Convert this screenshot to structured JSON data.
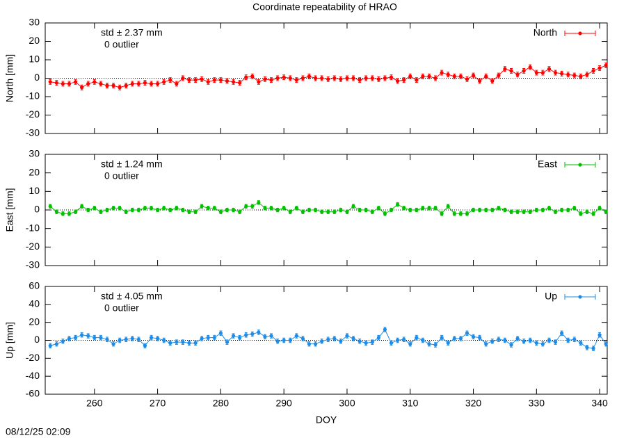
{
  "title": "Coordinate repeatability of HRAO",
  "xlabel": "DOY",
  "timestamp": "08/12/25 02:09",
  "chart_data": [
    {
      "type": "line",
      "ylabel": "North [mm]",
      "std_text": "std ± 2.37 mm",
      "outlier_text": "0 outlier",
      "xlim": [
        252.2,
        341.2
      ],
      "xticks": [
        260,
        270,
        280,
        290,
        300,
        310,
        320,
        330,
        340
      ],
      "ylim": [
        -30,
        30
      ],
      "yticks": [
        -30,
        -20,
        -10,
        0,
        10,
        20,
        30
      ],
      "x": [
        253,
        254,
        255,
        256,
        257,
        258,
        259,
        260,
        261,
        262,
        263,
        264,
        265,
        266,
        267,
        268,
        269,
        270,
        271,
        272,
        273,
        274,
        275,
        276,
        277,
        278,
        279,
        280,
        281,
        282,
        283,
        284,
        285,
        286,
        287,
        288,
        289,
        290,
        291,
        292,
        293,
        294,
        295,
        296,
        297,
        298,
        299,
        300,
        301,
        302,
        303,
        304,
        305,
        306,
        307,
        308,
        309,
        310,
        311,
        312,
        313,
        314,
        315,
        316,
        317,
        318,
        319,
        320,
        321,
        322,
        323,
        324,
        325,
        326,
        327,
        328,
        329,
        330,
        331,
        332,
        333,
        334,
        335,
        336,
        337,
        338,
        339,
        340,
        341
      ],
      "series": [
        {
          "name": "North",
          "color": "#ff0000",
          "error": 1.3,
          "values": [
            -2,
            -2.5,
            -3,
            -3,
            -2,
            -5,
            -3,
            -2,
            -3,
            -4,
            -4,
            -5,
            -4,
            -3,
            -3,
            -2.5,
            -3,
            -3,
            -2,
            -1,
            -3,
            0,
            -1,
            -1,
            -0.5,
            -2,
            -1,
            -1,
            -1.5,
            -2,
            -2.5,
            0.5,
            1,
            -2,
            -0.5,
            -1,
            0,
            0.5,
            0,
            -1,
            0,
            1,
            0,
            0,
            -0.5,
            0,
            -0.5,
            0,
            0,
            -1,
            0,
            0,
            -0.5,
            0,
            0.5,
            -1.5,
            -1,
            1,
            -1,
            1,
            1,
            0,
            3,
            2,
            1,
            1,
            -0.5,
            1.5,
            -1.5,
            1,
            -1.5,
            1.5,
            5,
            4,
            2,
            4,
            6,
            3,
            3,
            5,
            3,
            2.5,
            2,
            1.5,
            1,
            2,
            4,
            5.5,
            7
          ]
        }
      ]
    },
    {
      "type": "line",
      "ylabel": "East [mm]",
      "std_text": "std ± 1.24 mm",
      "outlier_text": "0 outlier",
      "xlim": [
        252.2,
        341.2
      ],
      "xticks": [
        260,
        270,
        280,
        290,
        300,
        310,
        320,
        330,
        340
      ],
      "ylim": [
        -30,
        30
      ],
      "yticks": [
        -30,
        -20,
        -10,
        0,
        10,
        20,
        30
      ],
      "x": [
        253,
        254,
        255,
        256,
        257,
        258,
        259,
        260,
        261,
        262,
        263,
        264,
        265,
        266,
        267,
        268,
        269,
        270,
        271,
        272,
        273,
        274,
        275,
        276,
        277,
        278,
        279,
        280,
        281,
        282,
        283,
        284,
        285,
        286,
        287,
        288,
        289,
        290,
        291,
        292,
        293,
        294,
        295,
        296,
        297,
        298,
        299,
        300,
        301,
        302,
        303,
        304,
        305,
        306,
        307,
        308,
        309,
        310,
        311,
        312,
        313,
        314,
        315,
        316,
        317,
        318,
        319,
        320,
        321,
        322,
        323,
        324,
        325,
        326,
        327,
        328,
        329,
        330,
        331,
        332,
        333,
        334,
        335,
        336,
        337,
        338,
        339,
        340,
        341
      ],
      "series": [
        {
          "name": "East",
          "color": "#00c000",
          "error": 1.0,
          "values": [
            2,
            -1,
            -2,
            -2,
            -1,
            2,
            0,
            1,
            -1,
            0,
            1,
            1,
            -1,
            0,
            0,
            1,
            1,
            0,
            1,
            0,
            1,
            0,
            -1,
            -1,
            2,
            1,
            1,
            -1,
            0,
            0,
            -1,
            2,
            2,
            4,
            1,
            1,
            0,
            1,
            -1,
            1,
            -1,
            0,
            0,
            -1,
            -1,
            -1,
            0,
            -1,
            2,
            0,
            0,
            -1,
            1,
            -2,
            0,
            3,
            1,
            0,
            0,
            1,
            1,
            1,
            -2,
            2,
            -2,
            -2,
            -2,
            0,
            0,
            0,
            0,
            1,
            0,
            -1,
            -1,
            -1,
            -1,
            0,
            0,
            1,
            -1,
            0,
            0,
            1,
            -2,
            -1,
            -2,
            1,
            -1
          ]
        }
      ]
    },
    {
      "type": "line",
      "ylabel": "Up [mm]",
      "std_text": "std ± 4.05 mm",
      "outlier_text": "0 outlier",
      "xlim": [
        252.2,
        341.2
      ],
      "xticks": [
        260,
        270,
        280,
        290,
        300,
        310,
        320,
        330,
        340
      ],
      "ylim": [
        -60,
        60
      ],
      "yticks": [
        -60,
        -40,
        -20,
        0,
        20,
        40,
        60
      ],
      "x": [
        253,
        254,
        255,
        256,
        257,
        258,
        259,
        260,
        261,
        262,
        263,
        264,
        265,
        266,
        267,
        268,
        269,
        270,
        271,
        272,
        273,
        274,
        275,
        276,
        277,
        278,
        279,
        280,
        281,
        282,
        283,
        284,
        285,
        286,
        287,
        288,
        289,
        290,
        291,
        292,
        293,
        294,
        295,
        296,
        297,
        298,
        299,
        300,
        301,
        302,
        303,
        304,
        305,
        306,
        307,
        308,
        309,
        310,
        311,
        312,
        313,
        314,
        315,
        316,
        317,
        318,
        319,
        320,
        321,
        322,
        323,
        324,
        325,
        326,
        327,
        328,
        329,
        330,
        331,
        332,
        333,
        334,
        335,
        336,
        337,
        338,
        339,
        340,
        341
      ],
      "series": [
        {
          "name": "Up",
          "color": "#1e8ce6",
          "error": 2.5,
          "values": [
            -6,
            -4,
            -1,
            2,
            3,
            6,
            5,
            3,
            3,
            1,
            -4,
            0,
            1,
            2,
            1,
            -6,
            3,
            2,
            0,
            -3,
            -2,
            -2,
            -3,
            -3,
            2,
            3,
            3,
            8,
            -2,
            5,
            3,
            6,
            7,
            9,
            4,
            5,
            -1,
            0,
            0,
            5,
            2,
            -4,
            -4,
            -1,
            1,
            2,
            -1,
            5,
            2,
            -1,
            -3,
            -2,
            3,
            12,
            -3,
            0,
            1,
            -4,
            3,
            0,
            -4,
            -5,
            3,
            -3,
            2,
            2,
            8,
            4,
            3,
            -4,
            -1,
            1,
            0,
            -5,
            2,
            -1,
            0,
            -3,
            -4,
            0,
            -2,
            8,
            0,
            1,
            -3,
            -8,
            -9,
            6,
            -4
          ]
        }
      ]
    }
  ]
}
